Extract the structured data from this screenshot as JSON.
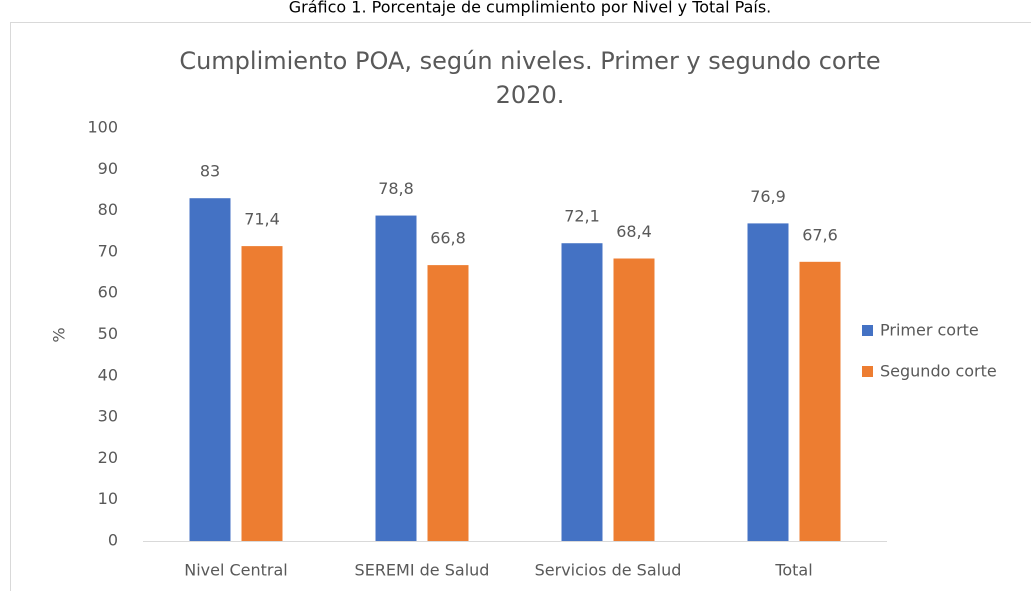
{
  "caption": "Gráfico 1. Porcentaje de cumplimiento por Nivel y Total País.",
  "chart_data": {
    "type": "bar",
    "title": "Cumplimiento POA, según niveles. Primer y segundo corte 2020.",
    "y_label": "%",
    "categories": [
      "Nivel Central",
      "SEREMI de Salud",
      "Servicios de Salud",
      "Total"
    ],
    "series": [
      {
        "name": "Primer corte",
        "color": "#4472c4",
        "values": [
          83,
          78.8,
          72.1,
          76.9
        ],
        "value_labels": [
          "83",
          "78,8",
          "72,1",
          "76,9"
        ]
      },
      {
        "name": "Segundo corte",
        "color": "#ed7d31",
        "values": [
          71.4,
          66.8,
          68.4,
          67.6
        ],
        "value_labels": [
          "71,4",
          "66,8",
          "68,4",
          "67,6"
        ]
      }
    ],
    "ylim": [
      0,
      100
    ],
    "yticks": [
      0,
      10,
      20,
      30,
      40,
      50,
      60,
      70,
      80,
      90,
      100
    ],
    "grid": false,
    "legend": "right"
  }
}
